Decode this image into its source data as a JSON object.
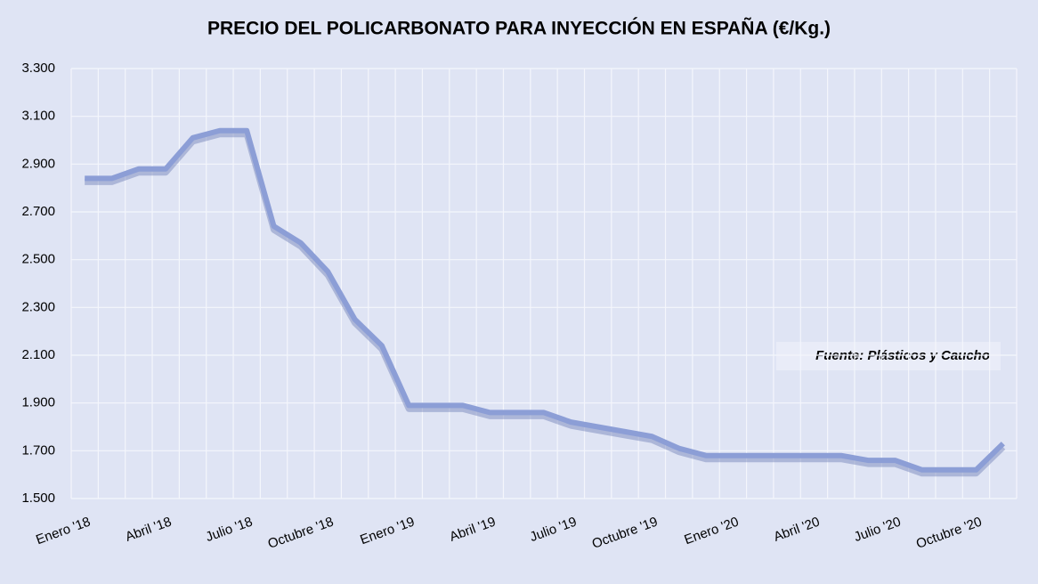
{
  "chart_data": {
    "type": "line",
    "title": "PRECIO DEL POLICARBONATO PARA INYECCIÓN EN ESPAÑA (€/Kg.)",
    "annotation": "Fuente: Plásticos y Caucho",
    "categories": [
      "Enero '18",
      null,
      null,
      "Abril '18",
      null,
      null,
      "Julio '18",
      null,
      null,
      "Octubre '18",
      null,
      null,
      "Enero '19",
      null,
      null,
      "Abril '19",
      null,
      null,
      "Julio '19",
      null,
      null,
      "Octubre '19",
      null,
      null,
      "Enero '20",
      null,
      null,
      "Abril '20",
      null,
      null,
      "Julio '20",
      null,
      null,
      "Octubre '20",
      null
    ],
    "series": [
      {
        "name": "Policarbonato",
        "color": "#8c9ed6",
        "values": [
          2840,
          2840,
          2880,
          2880,
          3010,
          3040,
          3040,
          2640,
          2570,
          2450,
          2250,
          2140,
          1890,
          1890,
          1890,
          1860,
          1860,
          1860,
          1820,
          1800,
          1780,
          1760,
          1710,
          1680,
          1680,
          1680,
          1680,
          1680,
          1680,
          1660,
          1660,
          1620,
          1620,
          1620,
          1730
        ]
      }
    ],
    "ylim": [
      1500,
      3300
    ],
    "yticks": [
      {
        "value": 1500,
        "label": "1.500"
      },
      {
        "value": 1700,
        "label": "1.700"
      },
      {
        "value": 1900,
        "label": "1.900"
      },
      {
        "value": 2100,
        "label": "2.100"
      },
      {
        "value": 2300,
        "label": "2.300"
      },
      {
        "value": 2500,
        "label": "2.500"
      },
      {
        "value": 2700,
        "label": "2.700"
      },
      {
        "value": 2900,
        "label": "2.900"
      },
      {
        "value": 3100,
        "label": "3.100"
      },
      {
        "value": 3300,
        "label": "3.300"
      }
    ],
    "grid": true
  }
}
